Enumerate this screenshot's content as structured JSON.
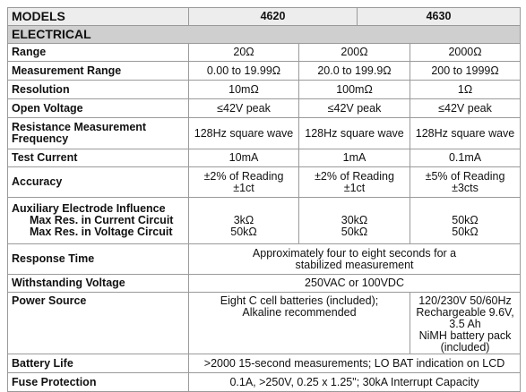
{
  "header": {
    "label": "MODELS",
    "models": [
      "4620",
      "4630"
    ]
  },
  "section": "ELECTRICAL",
  "rows": [
    {
      "label": "Range",
      "values": [
        "20Ω",
        "200Ω",
        "2000Ω"
      ]
    },
    {
      "label": "Measurement Range",
      "values": [
        "0.00 to 19.99Ω",
        "20.0 to 199.9Ω",
        "200 to 1999Ω"
      ]
    },
    {
      "label": "Resolution",
      "values": [
        "10mΩ",
        "100mΩ",
        "1Ω"
      ]
    },
    {
      "label": "Open Voltage",
      "values": [
        "≤42V peak",
        "≤42V peak",
        "≤42V peak"
      ]
    },
    {
      "label": "Resistance Measurement Frequency",
      "values": [
        "128Hz square wave",
        "128Hz square wave",
        "128Hz square wave"
      ]
    },
    {
      "label": "Test Current",
      "values": [
        "10mA",
        "1mA",
        "0.1mA"
      ]
    },
    {
      "label": "Accuracy",
      "values": [
        [
          "±2% of Reading",
          "±1ct"
        ],
        [
          "±2% of Reading",
          "±1ct"
        ],
        [
          "±5% of Reading",
          "±3cts"
        ]
      ]
    },
    {
      "label": "Auxiliary Electrode Influence",
      "sublabels": [
        "Max Res. in Current Circuit",
        "Max Res. in Voltage Circuit"
      ],
      "values": [
        [
          "3kΩ",
          "50kΩ"
        ],
        [
          "30kΩ",
          "50kΩ"
        ],
        [
          "50kΩ",
          "50kΩ"
        ]
      ]
    },
    {
      "label": "Response Time",
      "values": [
        [
          "Approximately four to eight seconds for a",
          "stabilized measurement"
        ]
      ]
    },
    {
      "label": "Withstanding Voltage",
      "values": [
        "250VAC or 100VDC"
      ]
    },
    {
      "label": "Power Source",
      "values": [
        [
          "Eight C cell batteries (included);",
          "Alkaline recommended"
        ],
        [
          "120/230V 50/60Hz",
          "Rechargeable 9.6V, 3.5 Ah",
          "NiMH battery pack (included)"
        ]
      ]
    },
    {
      "label": "Battery Life",
      "values": [
        ">2000 15-second measurements; LO BAT indication on LCD"
      ]
    },
    {
      "label": "Fuse Protection",
      "values": [
        "0.1A, >250V, 0.25 x 1.25\"; 30kA Interrupt Capacity"
      ]
    }
  ]
}
